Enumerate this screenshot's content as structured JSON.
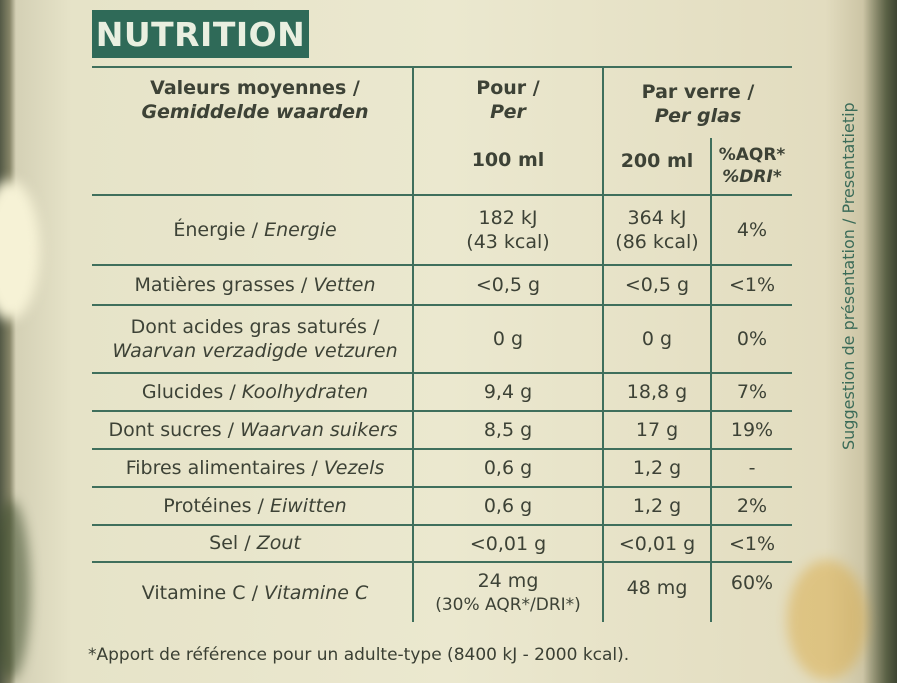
{
  "badge": "NUTRITION",
  "side_text": "Suggestion de présentation / Presentatietip",
  "header": {
    "col1_fr": "Valeurs moyennes /",
    "col1_nl": "Gemiddelde waarden",
    "col2_fr": "Pour /",
    "col2_nl": "Per",
    "col2_unit": "100 ml",
    "col3_fr": "Par verre /",
    "col3_nl": "Per glas",
    "col3_unit": "200 ml",
    "col4_fr": "%AQR*",
    "col4_nl": "%DRI*"
  },
  "rows": [
    {
      "fr": "Énergie / ",
      "nl": "Energie",
      "v100a": "182 kJ",
      "v100b": "(43 kcal)",
      "v200a": "364 kJ",
      "v200b": "(86 kcal)",
      "pct": "4%"
    },
    {
      "fr": "Matières grasses / ",
      "nl": "Vetten",
      "v100a": "<0,5 g",
      "v200a": "<0,5 g",
      "pct": "<1%"
    },
    {
      "fr": "Dont acides gras saturés /",
      "nl": "Waarvan verzadigde vetzuren",
      "v100a": "0 g",
      "v200a": "0 g",
      "pct": "0%"
    },
    {
      "fr": "Glucides / ",
      "nl": "Koolhydraten",
      "v100a": "9,4 g",
      "v200a": "18,8 g",
      "pct": "7%"
    },
    {
      "fr": "Dont sucres / ",
      "nl": "Waarvan suikers",
      "v100a": "8,5 g",
      "v200a": "17 g",
      "pct": "19%"
    },
    {
      "fr": "Fibres alimentaires / ",
      "nl": "Vezels",
      "v100a": "0,6 g",
      "v200a": "1,2 g",
      "pct": "-"
    },
    {
      "fr": "Protéines / ",
      "nl": "Eiwitten",
      "v100a": "0,6 g",
      "v200a": "1,2 g",
      "pct": "2%"
    },
    {
      "fr": "Sel / ",
      "nl": "Zout",
      "v100a": "<0,01 g",
      "v200a": "<0,01 g",
      "pct": "<1%"
    },
    {
      "fr": "Vitamine C / ",
      "nl": "Vitamine C",
      "v100a": "24 mg",
      "v100b": "(30% AQR*/DRI*)",
      "v200a": "48 mg",
      "pct": "60%"
    }
  ],
  "footnote": "*Apport de référence pour un adulte-type (8400 kJ - 2000 kcal)."
}
